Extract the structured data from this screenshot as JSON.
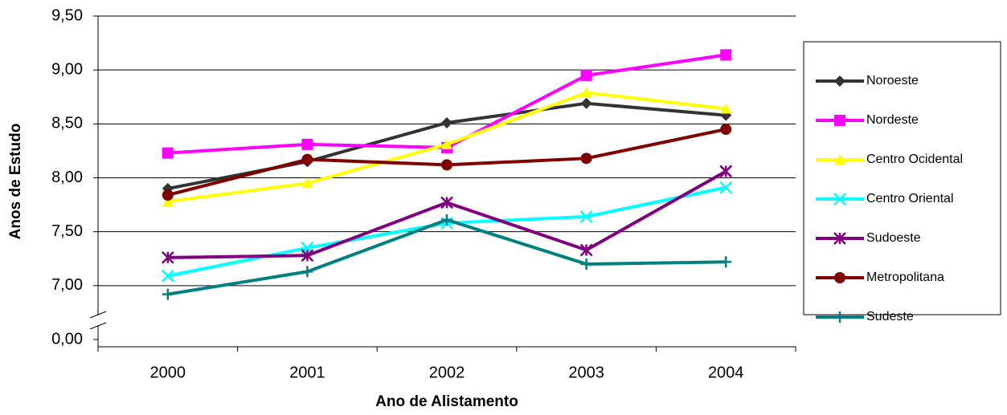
{
  "chart_data": {
    "type": "line",
    "x_label": "Ano de Alistamento",
    "y_label": "Anos de Estudo",
    "categories": [
      "2000",
      "2001",
      "2002",
      "2003",
      "2004"
    ],
    "ylim": [
      0,
      9.5
    ],
    "axis_break": [
      0,
      6.5
    ],
    "yticks": [
      {
        "value": 0,
        "label": "0,00"
      },
      {
        "value": 7,
        "label": "7,00"
      },
      {
        "value": 7.5,
        "label": "7,50"
      },
      {
        "value": 8,
        "label": "8,00"
      },
      {
        "value": 8.5,
        "label": "8,50"
      },
      {
        "value": 9,
        "label": "9,00"
      },
      {
        "value": 9.5,
        "label": "9,50"
      }
    ],
    "grid": true,
    "legend": "right",
    "series": [
      {
        "name": "Noroeste",
        "color": "#333333",
        "marker": "diamond",
        "values": [
          7.9,
          8.15,
          8.51,
          8.69,
          8.58
        ]
      },
      {
        "name": "Nordeste",
        "color": "#ff00ff",
        "marker": "square",
        "values": [
          8.23,
          8.31,
          8.28,
          8.95,
          9.14
        ]
      },
      {
        "name": "Centro Ocidental",
        "color": "#ffff00",
        "marker": "triangle",
        "values": [
          7.78,
          7.95,
          8.31,
          8.79,
          8.64
        ]
      },
      {
        "name": "Centro Oriental",
        "color": "#00ffff",
        "marker": "x",
        "values": [
          7.09,
          7.35,
          7.58,
          7.64,
          7.91
        ]
      },
      {
        "name": "Sudoeste",
        "color": "#800080",
        "marker": "star",
        "values": [
          7.26,
          7.28,
          7.77,
          7.33,
          8.06
        ]
      },
      {
        "name": "Metropolitana",
        "color": "#800000",
        "marker": "circle",
        "values": [
          7.84,
          8.17,
          8.12,
          8.18,
          8.45
        ]
      },
      {
        "name": "Sudeste",
        "color": "#008080",
        "marker": "plus",
        "values": [
          6.92,
          7.13,
          7.61,
          7.2,
          7.22
        ]
      }
    ]
  }
}
